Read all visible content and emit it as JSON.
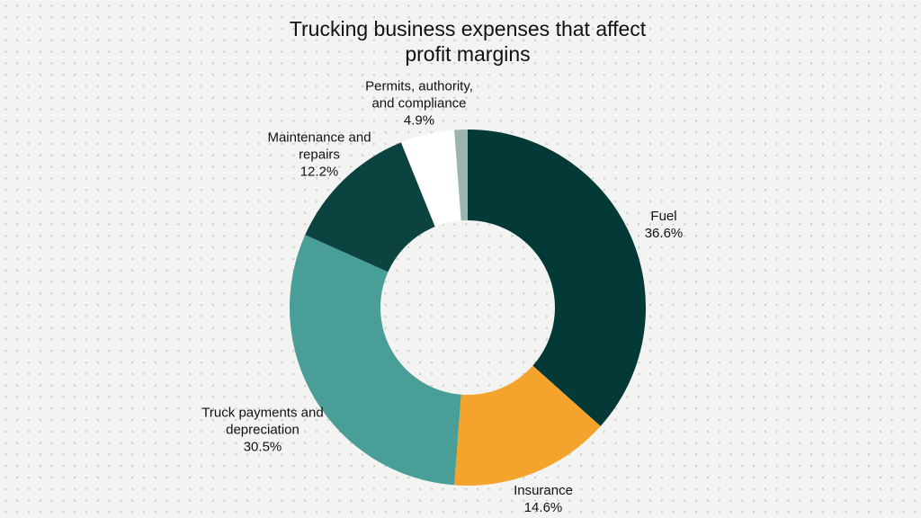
{
  "chart_data": {
    "type": "donut",
    "title": "Trucking business expenses that affect profit margins",
    "categories": [
      "Fuel",
      "Insurance",
      "Truck payments and depreciation",
      "Maintenance and repairs",
      "Permits, authority, and compliance",
      null
    ],
    "values": [
      36.6,
      14.6,
      30.5,
      12.2,
      4.9,
      1.2
    ],
    "value_labels": [
      "36.6%",
      "14.6%",
      "30.5%",
      "12.2%",
      "4.9%",
      null
    ],
    "colors": [
      "#033a37",
      "#f4a42c",
      "#4a9e98",
      "#0a433f",
      "#ffffff",
      "#9db3ad"
    ]
  }
}
